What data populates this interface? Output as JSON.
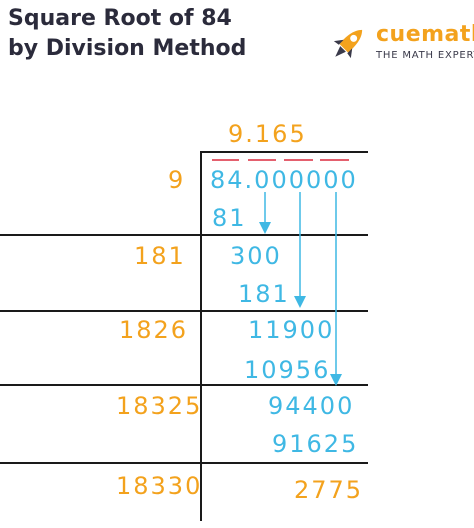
{
  "title": {
    "line1": "Square Root of 84",
    "line2": "by Division Method"
  },
  "logo": {
    "name": "cuemath",
    "tagline": "THE MATH EXPERT"
  },
  "quotient": "9.165",
  "divisors": [
    "9",
    "181",
    "1826",
    "18325",
    "18330"
  ],
  "dividend": "84.000000",
  "steps": {
    "sub1": "81",
    "rem1": "300",
    "sub2": "181",
    "rem2": "11900",
    "sub3": "10956",
    "rem3": "94400",
    "sub4": "91625",
    "remainder": "2775"
  },
  "colors": {
    "orange": "#f3a21d",
    "blue": "#3fb8e4",
    "pair_mark": "#e4606e",
    "title": "#2b2b3b"
  },
  "icons": [
    "rocket-icon",
    "down-arrow-icon"
  ]
}
